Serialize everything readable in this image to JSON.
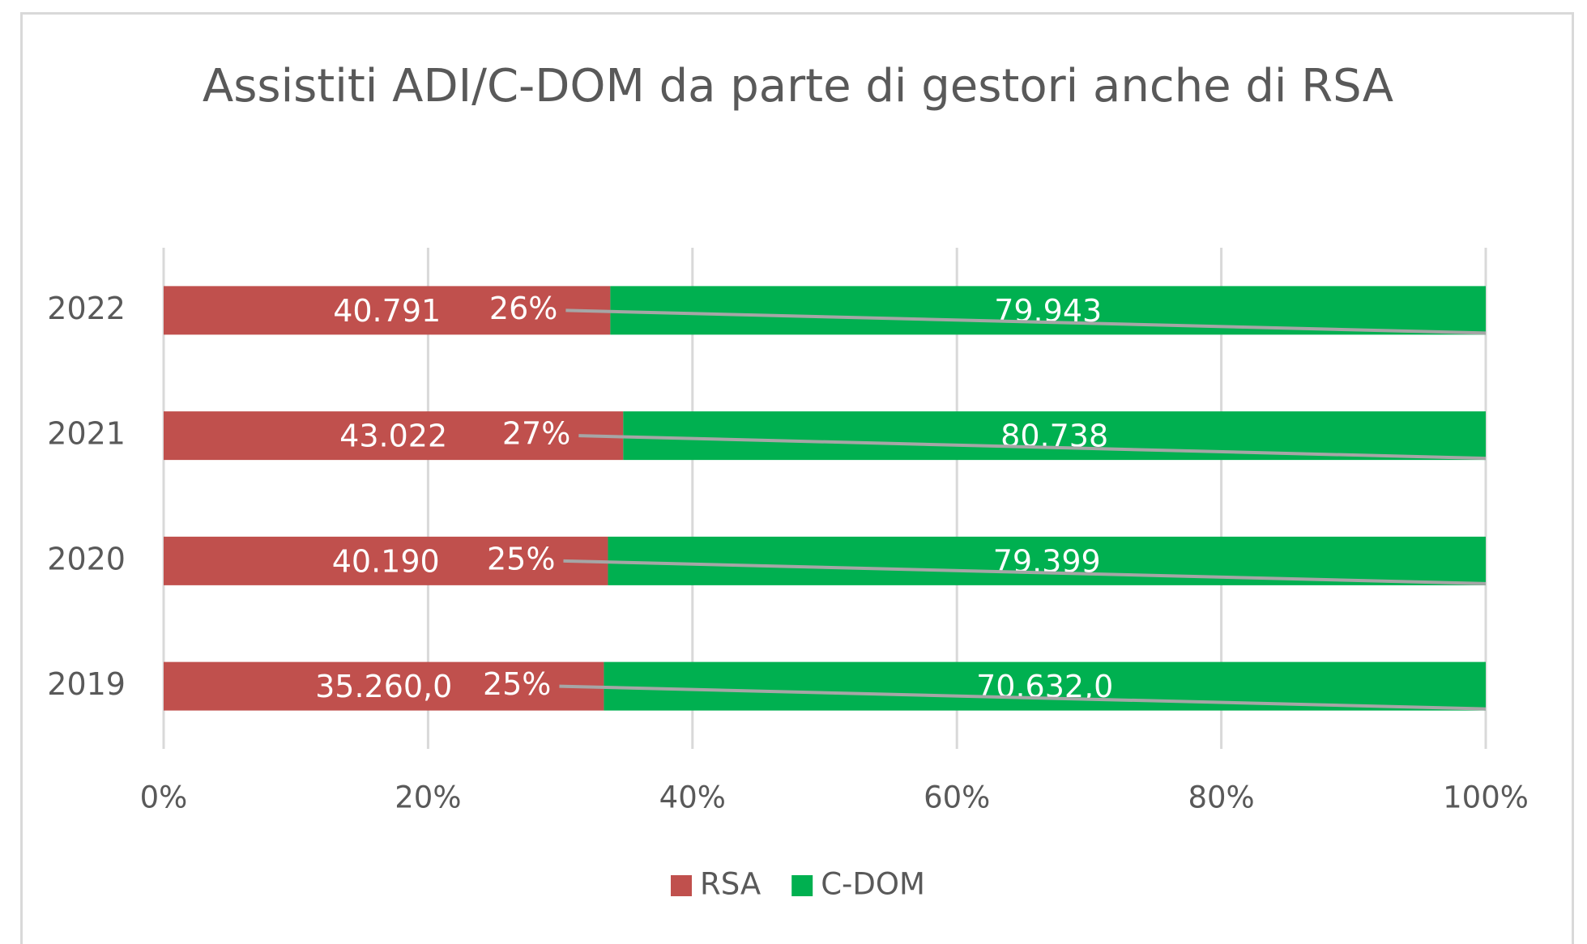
{
  "chart_data": {
    "type": "stacked_bar_100_horizontal",
    "title": "Assistiti ADI/C-DOM da parte di gestori anche di RSA",
    "categories": [
      "2019",
      "2020",
      "2021",
      "2022"
    ],
    "series": [
      {
        "name": "RSA",
        "color": "#c0504d",
        "values": [
          35260.0,
          40190,
          43022,
          40791
        ],
        "value_labels": [
          "35.260,0",
          "40.190",
          "43.022",
          "40.791"
        ]
      },
      {
        "name": "C-DOM",
        "color": "#00b050",
        "values": [
          70632.0,
          79399,
          80738,
          79943
        ],
        "value_labels": [
          "70.632,0",
          "79.399",
          "80.738",
          "79.943"
        ]
      }
    ],
    "percent_labels": {
      "values": [
        25,
        25,
        27,
        26
      ],
      "value_labels": [
        "25%",
        "25%",
        "27%",
        "26%"
      ],
      "color": "#a6a6a6"
    },
    "xlim": [
      0,
      100
    ],
    "xticks": [
      {
        "value": 0,
        "label": "0%"
      },
      {
        "value": 20,
        "label": "20%"
      },
      {
        "value": 40,
        "label": "40%"
      },
      {
        "value": 60,
        "label": "60%"
      },
      {
        "value": 80,
        "label": "80%"
      },
      {
        "value": 100,
        "label": "100%"
      }
    ],
    "grid": true,
    "legend": "bottom"
  }
}
